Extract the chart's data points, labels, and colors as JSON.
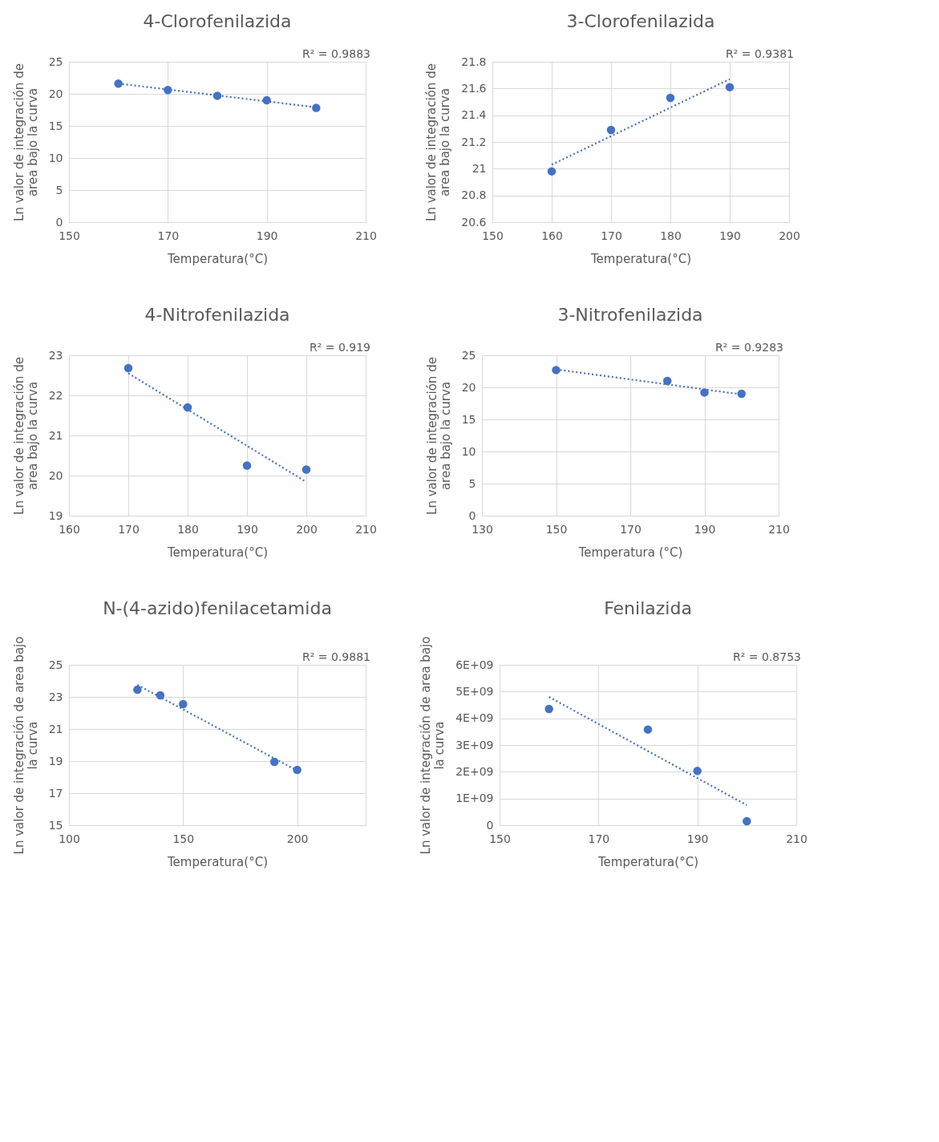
{
  "chart_data": [
    {
      "type": "scatter",
      "title": "4-Clorofenilazida",
      "xlabel": "Temperatura(°C)",
      "ylabel": "Ln valor de integración de\narea bajo la curva",
      "xlim": [
        150,
        210
      ],
      "xticks": [
        150,
        170,
        190,
        210
      ],
      "ylim": [
        0,
        25
      ],
      "yticks": [
        0,
        5,
        10,
        15,
        20,
        25
      ],
      "grid": true,
      "annotations": [
        "R² = 0.9883"
      ],
      "series": [
        {
          "marker": "circle",
          "color": "#4472c4",
          "x": [
            160,
            170,
            180,
            190,
            200
          ],
          "values": [
            21.6,
            20.6,
            19.7,
            19.0,
            17.8
          ]
        },
        {
          "type": "line",
          "marker": "none",
          "line_style": "dotted",
          "color": "#4472c4",
          "x": [
            160,
            200
          ],
          "values": [
            21.6,
            17.9
          ]
        }
      ]
    },
    {
      "type": "scatter",
      "title": "3-Clorofenilazida",
      "xlabel": "Temperatura(°C)",
      "ylabel": "Ln valor de integración de\narea bajo la curva",
      "xlim": [
        150,
        200
      ],
      "xticks": [
        150,
        160,
        170,
        180,
        190,
        200
      ],
      "ylim": [
        20.6,
        21.8
      ],
      "yticks": [
        20.6,
        20.8,
        21,
        21.2,
        21.4,
        21.6,
        21.8
      ],
      "grid": true,
      "annotations": [
        "R² = 0.9381"
      ],
      "series": [
        {
          "marker": "circle",
          "color": "#4472c4",
          "x": [
            160,
            170,
            180,
            190
          ],
          "values": [
            20.98,
            21.29,
            21.53,
            21.61
          ]
        },
        {
          "type": "line",
          "marker": "none",
          "line_style": "dotted",
          "color": "#4472c4",
          "x": [
            160,
            190
          ],
          "values": [
            21.03,
            21.67
          ]
        }
      ]
    },
    {
      "type": "scatter",
      "title": "4-Nitrofenilazida",
      "xlabel": "Temperatura(°C)",
      "ylabel": "Ln valor de integración de\narea bajo la curva",
      "xlim": [
        160,
        210
      ],
      "xticks": [
        160,
        170,
        180,
        190,
        200,
        210
      ],
      "ylim": [
        19,
        23
      ],
      "yticks": [
        19,
        20,
        21,
        22,
        23
      ],
      "grid": true,
      "annotations": [
        "R² = 0.919"
      ],
      "series": [
        {
          "marker": "circle",
          "color": "#4472c4",
          "x": [
            170,
            180,
            190,
            200
          ],
          "values": [
            22.68,
            21.7,
            20.25,
            20.15
          ]
        },
        {
          "type": "line",
          "marker": "none",
          "line_style": "dotted",
          "color": "#4472c4",
          "x": [
            170,
            200
          ],
          "values": [
            22.55,
            19.84
          ]
        }
      ]
    },
    {
      "type": "scatter",
      "title": "3-Nitrofenilazida",
      "xlabel": "Temperatura (°C)",
      "ylabel": "Ln valor de integración de\narea bajo la curva",
      "xlim": [
        130,
        210
      ],
      "xticks": [
        130,
        150,
        170,
        190,
        210
      ],
      "ylim": [
        0,
        25
      ],
      "yticks": [
        0,
        5,
        10,
        15,
        20,
        25
      ],
      "grid": true,
      "annotations": [
        "R² = 0.9283"
      ],
      "series": [
        {
          "marker": "circle",
          "color": "#4472c4",
          "x": [
            150,
            180,
            190,
            200
          ],
          "values": [
            22.7,
            21.0,
            19.2,
            19.0
          ]
        },
        {
          "type": "line",
          "marker": "none",
          "line_style": "dotted",
          "color": "#4472c4",
          "x": [
            150,
            200
          ],
          "values": [
            22.8,
            18.9
          ]
        }
      ]
    },
    {
      "type": "scatter",
      "title": "N-(4-azido)fenilacetamida",
      "xlabel": "Temperatura(°C)",
      "ylabel": "Ln valor de integración de area bajo\nla curva",
      "xlim": [
        100,
        230
      ],
      "xticks": [
        100,
        150,
        200
      ],
      "ylim": [
        15,
        25
      ],
      "yticks": [
        15,
        17,
        19,
        21,
        23,
        25
      ],
      "grid": true,
      "annotations": [
        "R² = 0.9881"
      ],
      "series": [
        {
          "marker": "circle",
          "color": "#4472c4",
          "x": [
            130,
            140,
            150,
            190,
            200
          ],
          "values": [
            23.45,
            23.1,
            22.55,
            18.95,
            18.45
          ]
        },
        {
          "type": "line",
          "marker": "none",
          "line_style": "dotted",
          "color": "#4472c4",
          "x": [
            130,
            200
          ],
          "values": [
            23.75,
            18.4
          ]
        }
      ]
    },
    {
      "type": "scatter",
      "title": "Fenilazida",
      "xlabel": "Temperatura(°C)",
      "ylabel": "Ln valor de integración de area bajo\nla curva",
      "xlim": [
        150,
        210
      ],
      "xticks": [
        150,
        170,
        190,
        210
      ],
      "ylim": [
        0,
        6000000000
      ],
      "yticks": [
        0,
        {
          "value": 1000000000,
          "label": "1E+09"
        },
        {
          "value": 2000000000,
          "label": "2E+09"
        },
        {
          "value": 3000000000,
          "label": "3E+09"
        },
        {
          "value": 4000000000,
          "label": "4E+09"
        },
        {
          "value": 5000000000,
          "label": "5E+09"
        },
        {
          "value": 6000000000,
          "label": "6E+09"
        }
      ],
      "grid": true,
      "annotations": [
        "R² = 0.8753"
      ],
      "series": [
        {
          "marker": "circle",
          "color": "#4472c4",
          "x": [
            160,
            180,
            190,
            200
          ],
          "values": [
            4350000000,
            3580000000,
            2030000000,
            150000000
          ]
        },
        {
          "type": "line",
          "marker": "none",
          "line_style": "dotted",
          "color": "#4472c4",
          "x": [
            160,
            200
          ],
          "values": [
            4800000000,
            750000000
          ]
        }
      ]
    }
  ]
}
